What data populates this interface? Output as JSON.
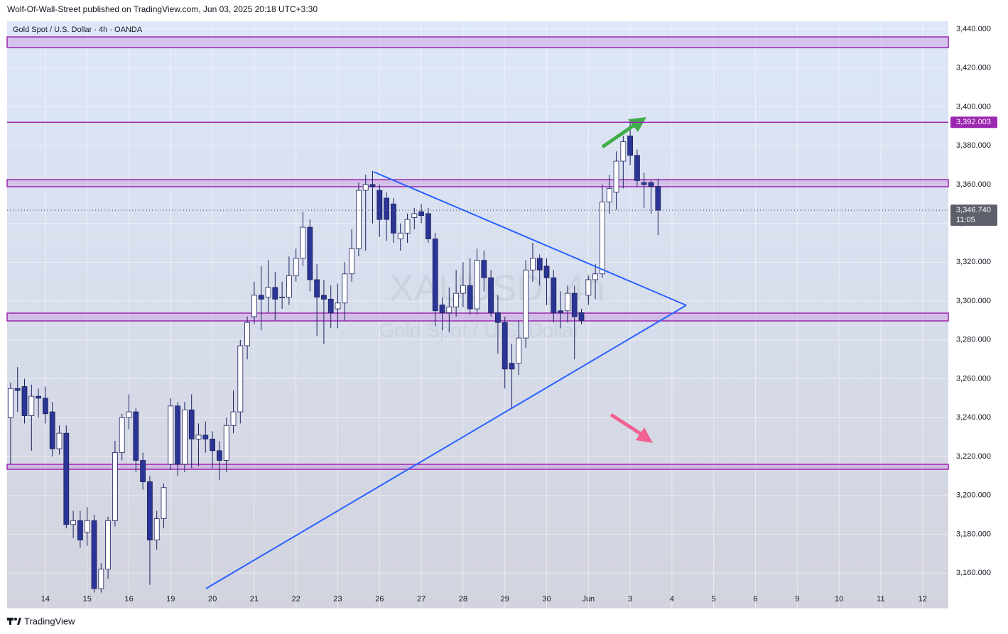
{
  "header": "Wolf-Of-Wall-Street published on TradingView.com, Jun 03, 2025 20:18 UTC+3:30",
  "footer": "TradingView",
  "chart_data": {
    "type": "candlestick",
    "title": "Gold Spot / U.S. Dollar · 4h · OANDA",
    "watermark": "XAUUSD, 4h",
    "watermark_subtitle": "Gold Spot / U.S. Dollar",
    "open": [
      3240,
      3255,
      3256,
      3241,
      3251,
      3250,
      3243,
      3224,
      3232,
      3185,
      3187,
      3181,
      3187,
      3152,
      3162,
      3187,
      3222,
      3240,
      3243,
      3218,
      3207,
      3177,
      3188,
      3216,
      3246,
      3216,
      3244,
      3229,
      3231,
      3229,
      3223,
      3218,
      3236,
      3243,
      3277,
      3292,
      3303,
      3302,
      3307,
      3302,
      3302,
      3313,
      3322,
      3338,
      3311,
      3303,
      3301,
      3296,
      3299,
      3314,
      3327,
      3357,
      3360,
      3357,
      3353,
      3350,
      3332,
      3335,
      3343,
      3346,
      3345,
      3332,
      3298,
      3294,
      3297,
      3304,
      3308,
      3296,
      3321,
      3312,
      3294,
      3289,
      3268,
      3268,
      3281,
      3316,
      3322,
      3318,
      3312,
      3295,
      3295,
      3304,
      3294,
      3303,
      3311,
      3314,
      3351,
      3356,
      3372,
      3385,
      3375,
      3361,
      3361,
      3359
    ],
    "high": [
      3258,
      3266,
      3260,
      3257,
      3255,
      3256,
      3248,
      3236,
      3236,
      3192,
      3192,
      3194,
      3190,
      3165,
      3189,
      3228,
      3242,
      3252,
      3245,
      3222,
      3210,
      3192,
      3206,
      3250,
      3248,
      3248,
      3252,
      3237,
      3238,
      3233,
      3228,
      3240,
      3254,
      3280,
      3292,
      3310,
      3318,
      3321,
      3315,
      3310,
      3323,
      3327,
      3346,
      3342,
      3319,
      3311,
      3308,
      3309,
      3320,
      3337,
      3361,
      3365,
      3367,
      3360,
      3356,
      3353,
      3340,
      3345,
      3348,
      3350,
      3348,
      3335,
      3302,
      3307,
      3316,
      3320,
      3322,
      3327,
      3326,
      3316,
      3303,
      3292,
      3278,
      3290,
      3321,
      3330,
      3324,
      3322,
      3316,
      3305,
      3308,
      3308,
      3296,
      3313,
      3319,
      3360,
      3365,
      3377,
      3385,
      3392,
      3378,
      3366,
      3362,
      3363
    ],
    "low": [
      3216,
      3243,
      3237,
      3223,
      3240,
      3237,
      3220,
      3221,
      3183,
      3178,
      3173,
      3174,
      3150,
      3150,
      3157,
      3184,
      3218,
      3234,
      3212,
      3203,
      3154,
      3172,
      3183,
      3213,
      3210,
      3212,
      3214,
      3215,
      3222,
      3214,
      3208,
      3212,
      3232,
      3237,
      3270,
      3288,
      3285,
      3294,
      3290,
      3296,
      3298,
      3310,
      3318,
      3305,
      3282,
      3278,
      3286,
      3286,
      3290,
      3310,
      3323,
      3326,
      3340,
      3333,
      3331,
      3330,
      3326,
      3330,
      3337,
      3340,
      3330,
      3287,
      3285,
      3284,
      3292,
      3297,
      3293,
      3293,
      3305,
      3292,
      3273,
      3255,
      3245,
      3262,
      3276,
      3310,
      3308,
      3298,
      3289,
      3286,
      3289,
      3270,
      3288,
      3298,
      3301,
      3312,
      3345,
      3347,
      3358,
      3370,
      3359,
      3348,
      3345,
      3334
    ],
    "close": [
      3255,
      3254,
      3241,
      3251,
      3250,
      3242,
      3224,
      3232,
      3185,
      3187,
      3177,
      3187,
      3152,
      3162,
      3187,
      3222,
      3240,
      3243,
      3218,
      3207,
      3177,
      3188,
      3204,
      3246,
      3216,
      3244,
      3229,
      3231,
      3229,
      3223,
      3218,
      3236,
      3243,
      3277,
      3289,
      3303,
      3301,
      3307,
      3301,
      3302,
      3313,
      3322,
      3338,
      3311,
      3302,
      3301,
      3294,
      3299,
      3314,
      3327,
      3357,
      3360,
      3359,
      3342,
      3342,
      3335,
      3335,
      3342,
      3345,
      3344,
      3332,
      3295,
      3294,
      3297,
      3304,
      3308,
      3296,
      3321,
      3312,
      3294,
      3289,
      3265,
      3265,
      3281,
      3316,
      3322,
      3316,
      3312,
      3294,
      3294,
      3304,
      3292,
      3290,
      3311,
      3314,
      3351,
      3358,
      3372,
      3382,
      3375,
      3362,
      3360,
      3359,
      3346.74
    ],
    "up_color": "#ffffff",
    "down_color": "#2b3595",
    "outline_color": "#1c2160",
    "xlim": [
      -0.5,
      134.7
    ],
    "xticks": [
      {
        "value": 5,
        "label": "14"
      },
      {
        "value": 11,
        "label": "15"
      },
      {
        "value": 17,
        "label": "16"
      },
      {
        "value": 23,
        "label": "19"
      },
      {
        "value": 29,
        "label": "20"
      },
      {
        "value": 35,
        "label": "21"
      },
      {
        "value": 41,
        "label": "22"
      },
      {
        "value": 47,
        "label": "23"
      },
      {
        "value": 53,
        "label": "26"
      },
      {
        "value": 59,
        "label": "27"
      },
      {
        "value": 65,
        "label": "28"
      },
      {
        "value": 71,
        "label": "29"
      },
      {
        "value": 77,
        "label": "30"
      },
      {
        "value": 83,
        "label": "Jun"
      },
      {
        "value": 89,
        "label": "3"
      },
      {
        "value": 95,
        "label": "4"
      },
      {
        "value": 101,
        "label": "5"
      },
      {
        "value": 107,
        "label": "6"
      },
      {
        "value": 113,
        "label": "9"
      },
      {
        "value": 119,
        "label": "10"
      },
      {
        "value": 125,
        "label": "11"
      },
      {
        "value": 131,
        "label": "12"
      }
    ],
    "ylim": [
      3141.8,
      3444.0
    ],
    "yticks": [
      {
        "value": 3160,
        "label": "3,160.000"
      },
      {
        "value": 3180,
        "label": "3,180.000"
      },
      {
        "value": 3200,
        "label": "3,200.000"
      },
      {
        "value": 3220,
        "label": "3,220.000"
      },
      {
        "value": 3240,
        "label": "3,240.000"
      },
      {
        "value": 3260,
        "label": "3,260.000"
      },
      {
        "value": 3280,
        "label": "3,280.000"
      },
      {
        "value": 3300,
        "label": "3,300.000"
      },
      {
        "value": 3320,
        "label": "3,320.000"
      },
      {
        "value": 3340,
        "label": "3,340.000"
      },
      {
        "value": 3360,
        "label": "3,360.000"
      },
      {
        "value": 3380,
        "label": "3,380.000"
      },
      {
        "value": 3400,
        "label": "3,400.000"
      },
      {
        "value": 3420,
        "label": "3,420.000"
      },
      {
        "value": 3440,
        "label": "3,440.000"
      }
    ],
    "grid": true,
    "price_line": {
      "value": 3392.003,
      "label": "3,392.003",
      "color": "#9c27b0"
    },
    "last_price": {
      "value": 3346.74,
      "label": "3,346.740",
      "color": "#5d606b"
    },
    "countdown": "11:05"
  }
}
